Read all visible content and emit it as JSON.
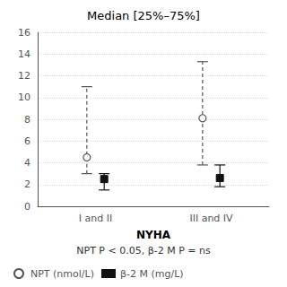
{
  "chart_data": {
    "type": "errorbar",
    "title": "Median [25%–75%]",
    "subtitle": "NPT P < 0.05, β-2 M P = ns",
    "xlabel": "NYHA",
    "categories": [
      "I and II",
      "III and IV"
    ],
    "series": [
      {
        "name": "NPT (nmol/L)",
        "color": "#555555",
        "marker": "open circle",
        "line_style": "dashed",
        "values": [
          4.5,
          8.1
        ],
        "q25": [
          3.0,
          3.8
        ],
        "q75": [
          11.0,
          13.3
        ]
      },
      {
        "name": "β-2 M (mg/L)",
        "color": "#111111",
        "marker": "square",
        "line_style": "solid",
        "values": [
          2.5,
          2.6
        ],
        "q25": [
          1.5,
          1.8
        ],
        "q75": [
          3.0,
          3.8
        ]
      }
    ],
    "ylim": [
      0,
      16
    ],
    "yticks": [
      0,
      2,
      4,
      6,
      8,
      10,
      12,
      14,
      16
    ],
    "grid": true,
    "legend": "lower left"
  }
}
